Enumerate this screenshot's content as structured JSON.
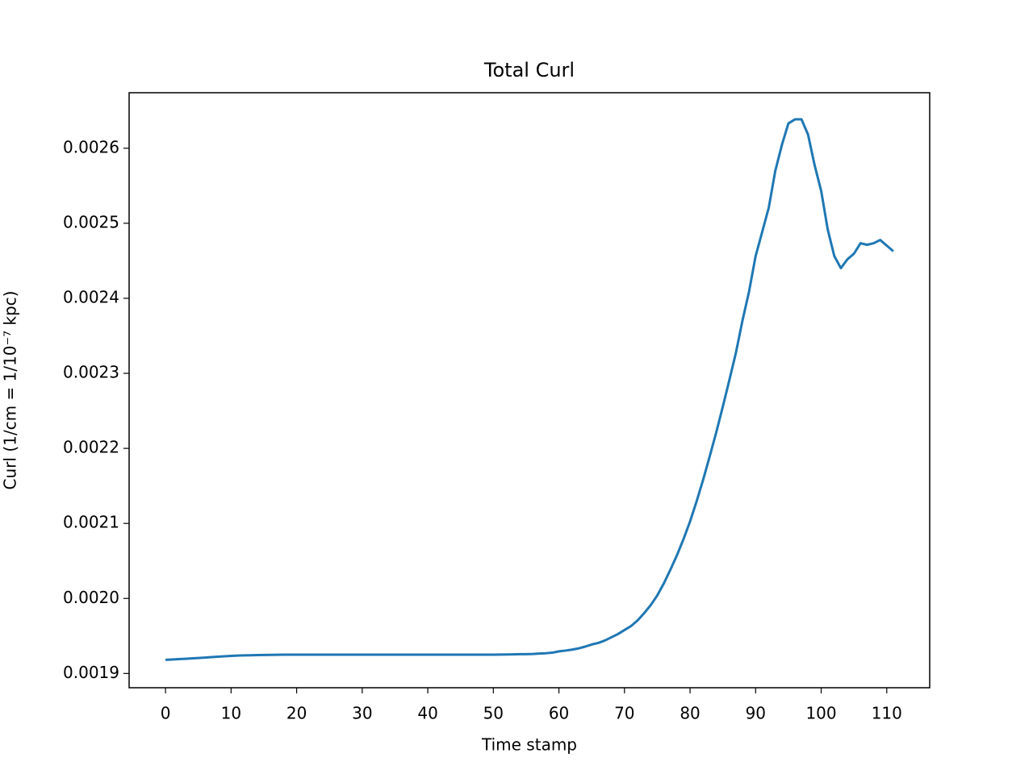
{
  "chart_data": {
    "type": "line",
    "title": "Total Curl",
    "xlabel": "Time stamp",
    "ylabel": "Curl (1/cm = 1/10⁻⁷ kpc)",
    "x": [
      0,
      1,
      2,
      3,
      4,
      5,
      6,
      7,
      8,
      9,
      10,
      11,
      12,
      13,
      14,
      15,
      16,
      17,
      18,
      19,
      20,
      21,
      22,
      23,
      24,
      25,
      26,
      27,
      28,
      29,
      30,
      31,
      32,
      33,
      34,
      35,
      36,
      37,
      38,
      39,
      40,
      41,
      42,
      43,
      44,
      45,
      46,
      47,
      48,
      49,
      50,
      51,
      52,
      53,
      54,
      55,
      56,
      57,
      58,
      59,
      60,
      61,
      62,
      63,
      64,
      65,
      66,
      67,
      68,
      69,
      70,
      71,
      72,
      73,
      74,
      75,
      76,
      77,
      78,
      79,
      80,
      81,
      82,
      83,
      84,
      85,
      86,
      87,
      88,
      89,
      90,
      91,
      92,
      93,
      94,
      95,
      96,
      97,
      98,
      99,
      100,
      101,
      102,
      103,
      104,
      105,
      106,
      107,
      108,
      109,
      110,
      111
    ],
    "series": [
      {
        "color": "#1f77b4",
        "values": [
          0.0019182,
          0.0019186,
          0.0019191,
          0.0019196,
          0.0019201,
          0.0019206,
          0.0019211,
          0.0019218,
          0.0019224,
          0.0019229,
          0.0019234,
          0.0019238,
          0.0019241,
          0.0019243,
          0.0019245,
          0.0019247,
          0.0019248,
          0.0019249,
          0.0019251,
          0.0019251,
          0.0019251,
          0.0019251,
          0.0019251,
          0.0019251,
          0.0019251,
          0.0019251,
          0.0019251,
          0.0019251,
          0.0019251,
          0.0019251,
          0.0019251,
          0.0019251,
          0.0019251,
          0.0019251,
          0.0019251,
          0.0019251,
          0.0019251,
          0.0019251,
          0.0019251,
          0.0019251,
          0.0019251,
          0.0019251,
          0.0019251,
          0.0019251,
          0.0019251,
          0.0019251,
          0.0019251,
          0.0019251,
          0.0019251,
          0.0019251,
          0.0019251,
          0.0019252,
          0.0019253,
          0.0019255,
          0.0019257,
          0.0019257,
          0.001926,
          0.0019265,
          0.001927,
          0.0019277,
          0.0019295,
          0.0019305,
          0.0019318,
          0.0019334,
          0.0019358,
          0.0019386,
          0.0019407,
          0.0019439,
          0.0019482,
          0.0019525,
          0.0019579,
          0.0019632,
          0.0019707,
          0.0019804,
          0.0019911,
          0.002004,
          0.00202,
          0.0020383,
          0.0020576,
          0.002079,
          0.0021026,
          0.0021294,
          0.0021583,
          0.0021894,
          0.0022215,
          0.0022558,
          0.0022912,
          0.0023276,
          0.0023705,
          0.0024091,
          0.0024563,
          0.0024884,
          0.0025206,
          0.0025699,
          0.0026042,
          0.0026331,
          0.0026385,
          0.0026385,
          0.0026181,
          0.0025774,
          0.0025431,
          0.0024916,
          0.0024563,
          0.0024402,
          0.002452,
          0.0024595,
          0.0024734,
          0.0024713,
          0.0024734,
          0.0024777,
          0.0024702,
          0.0024627
        ]
      }
    ],
    "xlim": [
      -5.55,
      116.55
    ],
    "ylim": [
      0.001881,
      0.002674
    ],
    "xticks": [
      0,
      10,
      20,
      30,
      40,
      50,
      60,
      70,
      80,
      90,
      100,
      110
    ],
    "yticks": [
      0.0019,
      {
        "value": 0.002,
        "label": "0.0020"
      },
      0.0021,
      0.0022,
      0.0023,
      0.0024,
      0.0025,
      0.0026
    ]
  }
}
